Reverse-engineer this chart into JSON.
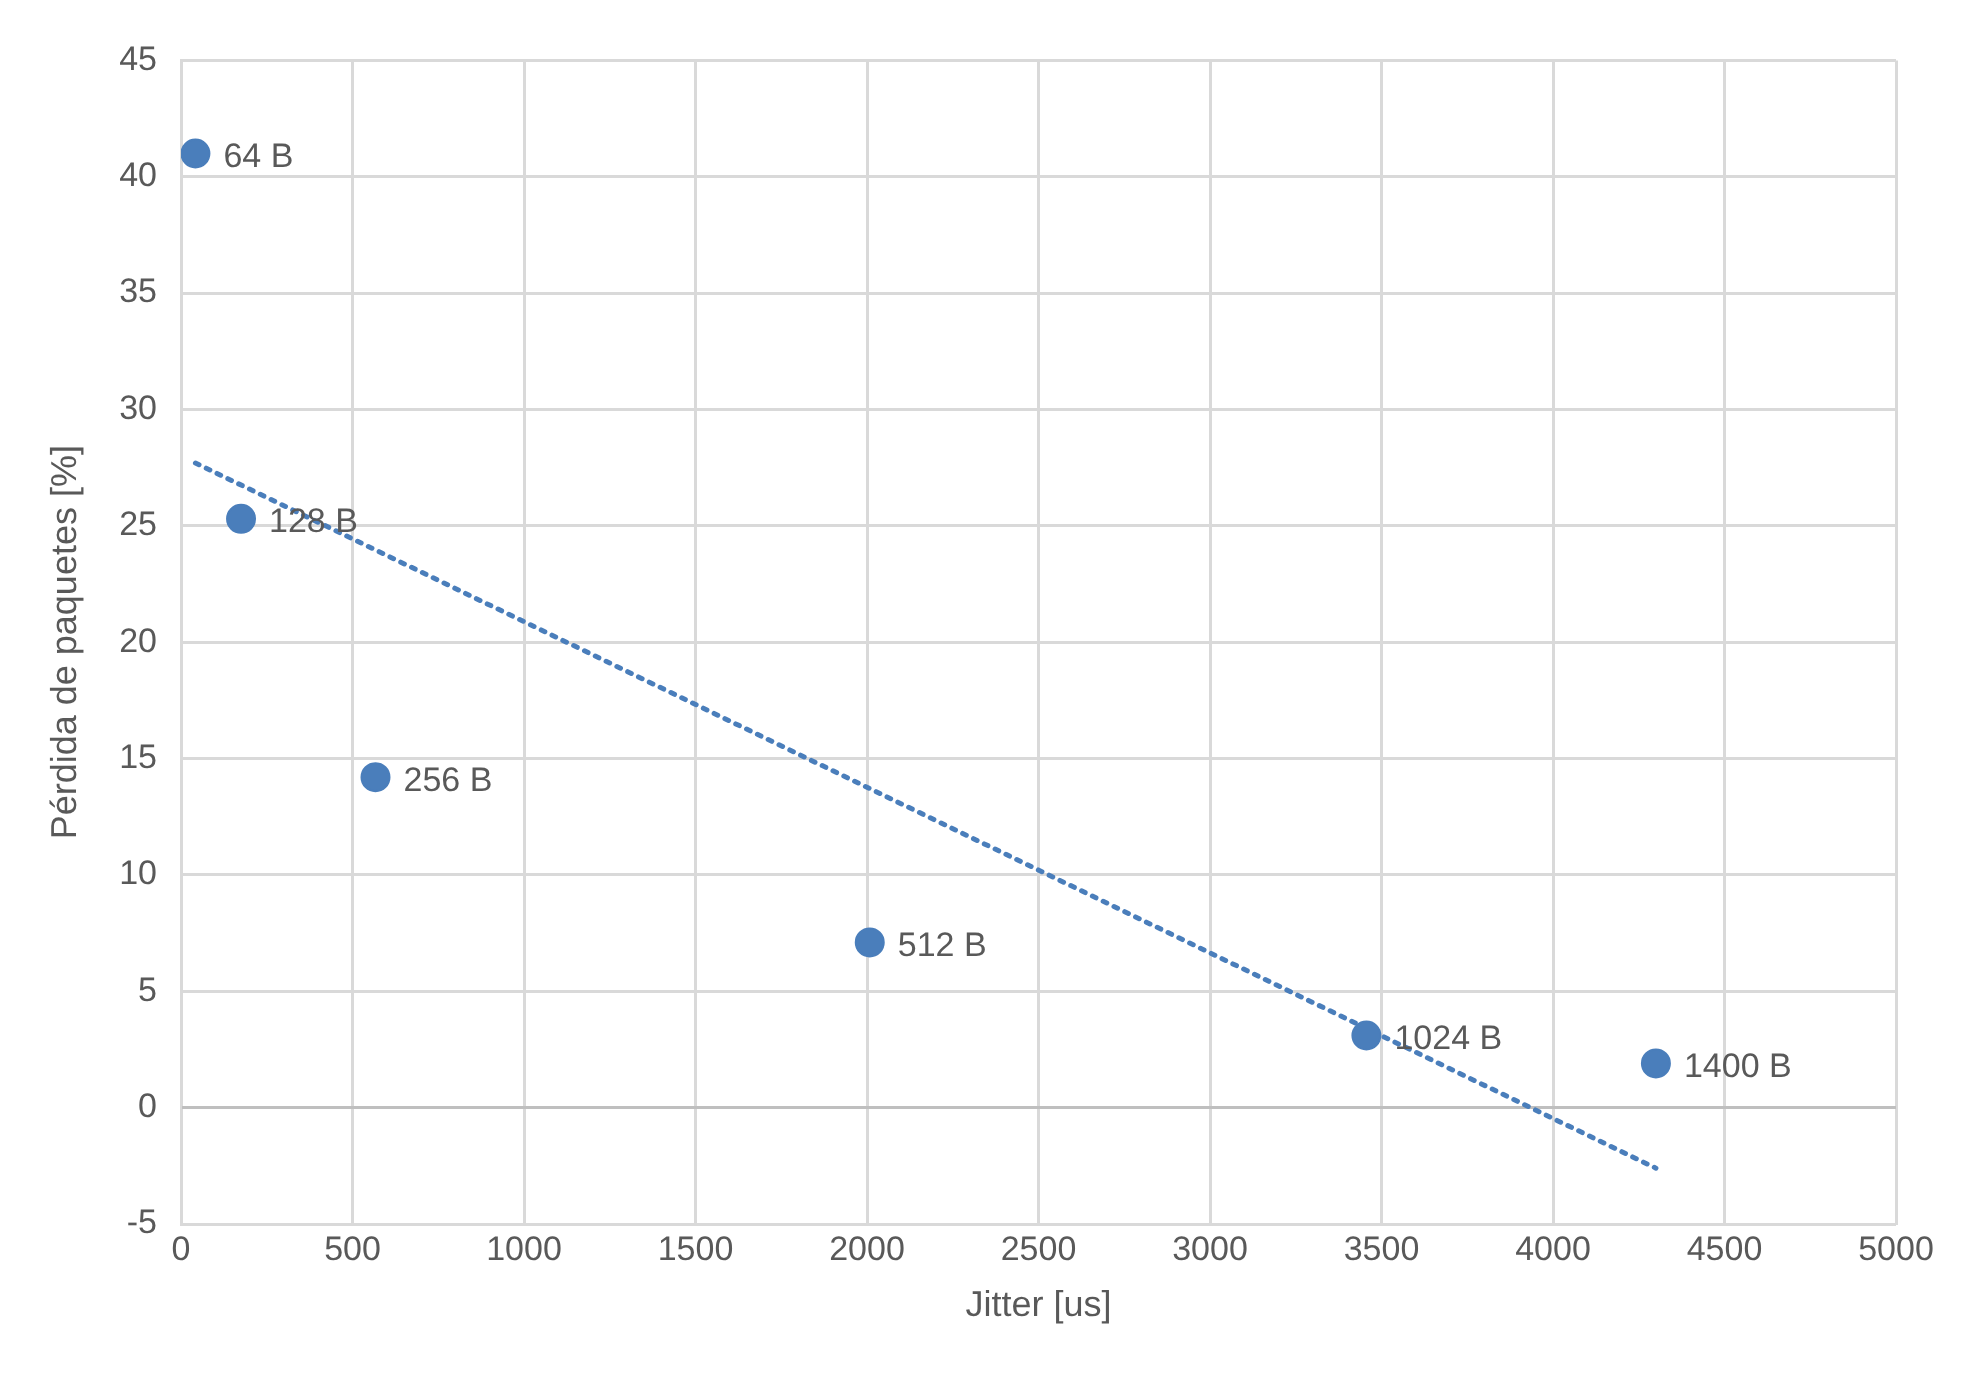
{
  "chart_data": {
    "type": "scatter",
    "xlabel": "Jitter [us]",
    "ylabel": "Pérdida de paquetes [%]",
    "xlim": [
      0,
      5000
    ],
    "xticks": [
      0,
      500,
      1000,
      1500,
      2000,
      2500,
      3000,
      3500,
      4000,
      4500,
      5000
    ],
    "ylim": [
      -5,
      45
    ],
    "yticks": [
      -5,
      0,
      5,
      10,
      15,
      20,
      25,
      30,
      35,
      40,
      45
    ],
    "grid": true,
    "annotations": [
      {
        "text": "64 B",
        "x": 42,
        "y": 41
      },
      {
        "text": "128 B",
        "x": 175,
        "y": 25.3
      },
      {
        "text": "256 B",
        "x": 567,
        "y": 14.2
      },
      {
        "text": "512 B",
        "x": 2008,
        "y": 7.1
      },
      {
        "text": "1024 B",
        "x": 3456,
        "y": 3.1
      },
      {
        "text": "1400 B",
        "x": 4300,
        "y": 1.9
      }
    ],
    "series": [
      {
        "color": "#4a7ebb",
        "marker": "circle",
        "x": [
          42,
          175,
          567,
          2008,
          3456,
          4300
        ],
        "values": [
          41,
          25.3,
          14.2,
          7.1,
          3.1,
          1.9
        ]
      },
      {
        "type": "line",
        "color": "#4a7ebb",
        "marker": "none",
        "line_style": "dotted",
        "x": [
          42,
          4300
        ],
        "values": [
          27.7,
          -2.6
        ]
      }
    ]
  }
}
